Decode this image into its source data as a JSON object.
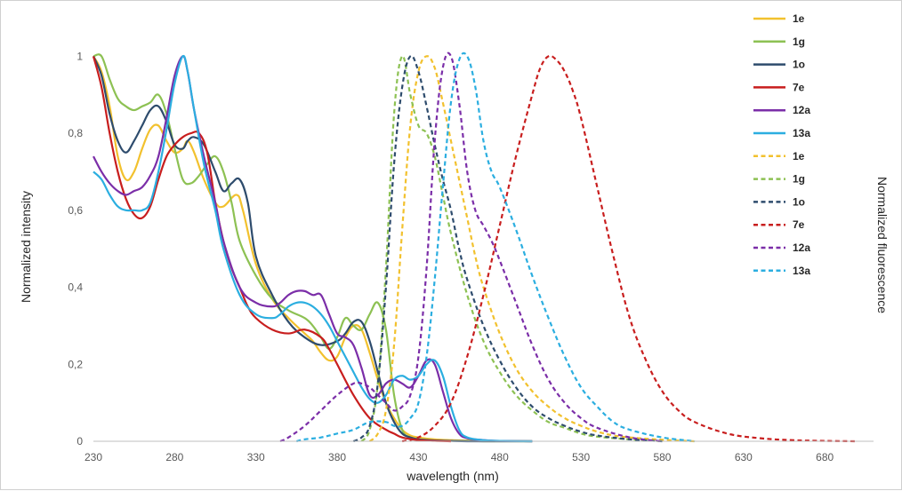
{
  "chart_data": {
    "type": "line",
    "xlabel": "wavelength (nm)",
    "ylabel": "Normalized intensity",
    "y2label": "Normalized fluorescence",
    "xlim": [
      230,
      710
    ],
    "ylim": [
      0,
      1.1
    ],
    "x_ticks": [
      230,
      280,
      330,
      380,
      430,
      480,
      530,
      580,
      630,
      680
    ],
    "y_ticks": [
      0,
      0.2,
      0.4,
      0.6,
      0.8,
      1
    ],
    "y_tick_labels": [
      "0",
      "0,2",
      "0,4",
      "0,6",
      "0,8",
      "1"
    ],
    "grid": false,
    "legend_position": "right",
    "series": [
      {
        "name": "1e",
        "style": "solid",
        "color": "#F2C12E",
        "x": [
          230,
          235,
          240,
          245,
          250,
          255,
          260,
          265,
          270,
          275,
          280,
          285,
          288,
          292,
          298,
          305,
          310,
          318,
          322,
          330,
          340,
          350,
          360,
          365,
          370,
          375,
          380,
          385,
          390,
          395,
          400,
          405,
          410,
          415,
          420,
          425,
          430,
          440,
          450,
          460,
          470,
          480,
          500
        ],
        "y": [
          1.0,
          0.96,
          0.87,
          0.74,
          0.68,
          0.7,
          0.76,
          0.81,
          0.82,
          0.78,
          0.75,
          0.76,
          0.78,
          0.75,
          0.68,
          0.62,
          0.61,
          0.64,
          0.6,
          0.46,
          0.37,
          0.32,
          0.28,
          0.26,
          0.23,
          0.21,
          0.22,
          0.27,
          0.3,
          0.29,
          0.23,
          0.16,
          0.1,
          0.06,
          0.03,
          0.015,
          0.01,
          0.005,
          0.003,
          0.002,
          0.001,
          0.001,
          0.0
        ]
      },
      {
        "name": "1g",
        "style": "solid",
        "color": "#8DC153",
        "x": [
          230,
          235,
          240,
          245,
          250,
          255,
          260,
          265,
          270,
          275,
          280,
          285,
          290,
          295,
          300,
          305,
          310,
          315,
          320,
          330,
          340,
          350,
          360,
          365,
          370,
          375,
          380,
          385,
          390,
          395,
          400,
          405,
          410,
          415,
          420,
          425,
          430,
          440,
          450,
          460,
          470,
          480,
          500
        ],
        "y": [
          1.0,
          1.0,
          0.94,
          0.89,
          0.87,
          0.86,
          0.87,
          0.88,
          0.9,
          0.85,
          0.76,
          0.68,
          0.67,
          0.69,
          0.72,
          0.74,
          0.7,
          0.62,
          0.52,
          0.43,
          0.37,
          0.34,
          0.32,
          0.3,
          0.27,
          0.24,
          0.27,
          0.32,
          0.3,
          0.29,
          0.33,
          0.36,
          0.29,
          0.12,
          0.03,
          0.01,
          0.005,
          0.002,
          0.001,
          0.001,
          0.0,
          0.0,
          0.0
        ]
      },
      {
        "name": "1o",
        "style": "solid",
        "color": "#2E4C6D",
        "x": [
          230,
          235,
          240,
          245,
          250,
          255,
          260,
          265,
          270,
          275,
          280,
          285,
          288,
          292,
          298,
          305,
          310,
          315,
          320,
          325,
          330,
          340,
          350,
          360,
          370,
          380,
          385,
          390,
          395,
          400,
          405,
          410,
          415,
          420,
          425,
          430,
          440,
          450,
          460,
          480,
          500
        ],
        "y": [
          1.0,
          0.95,
          0.85,
          0.78,
          0.75,
          0.78,
          0.82,
          0.86,
          0.87,
          0.83,
          0.77,
          0.76,
          0.78,
          0.79,
          0.77,
          0.7,
          0.65,
          0.67,
          0.68,
          0.62,
          0.48,
          0.38,
          0.31,
          0.27,
          0.25,
          0.26,
          0.28,
          0.31,
          0.31,
          0.26,
          0.18,
          0.1,
          0.05,
          0.02,
          0.01,
          0.005,
          0.002,
          0.001,
          0.0,
          0.0,
          0.0
        ]
      },
      {
        "name": "7e",
        "style": "solid",
        "color": "#C81E1E",
        "x": [
          230,
          235,
          240,
          245,
          250,
          255,
          260,
          265,
          270,
          275,
          280,
          285,
          290,
          295,
          300,
          305,
          310,
          315,
          320,
          325,
          330,
          340,
          350,
          360,
          370,
          375,
          380,
          390,
          400,
          410,
          415,
          420,
          430,
          440,
          450
        ],
        "y": [
          1.0,
          0.92,
          0.8,
          0.7,
          0.63,
          0.59,
          0.58,
          0.61,
          0.68,
          0.74,
          0.77,
          0.79,
          0.8,
          0.8,
          0.75,
          0.62,
          0.52,
          0.45,
          0.4,
          0.35,
          0.32,
          0.29,
          0.28,
          0.29,
          0.27,
          0.24,
          0.2,
          0.12,
          0.06,
          0.03,
          0.02,
          0.01,
          0.003,
          0.001,
          0.0
        ]
      },
      {
        "name": "12a",
        "style": "solid",
        "color": "#7B2EA8",
        "x": [
          230,
          235,
          240,
          245,
          250,
          255,
          260,
          265,
          270,
          275,
          280,
          285,
          288,
          292,
          298,
          305,
          310,
          320,
          330,
          340,
          345,
          350,
          355,
          360,
          365,
          370,
          375,
          380,
          385,
          390,
          395,
          400,
          405,
          410,
          415,
          420,
          425,
          430,
          435,
          440,
          445,
          450,
          455,
          460,
          470,
          480,
          500
        ],
        "y": [
          0.74,
          0.7,
          0.67,
          0.65,
          0.64,
          0.65,
          0.66,
          0.69,
          0.74,
          0.84,
          0.95,
          1.0,
          0.96,
          0.86,
          0.74,
          0.62,
          0.52,
          0.4,
          0.36,
          0.35,
          0.36,
          0.38,
          0.39,
          0.39,
          0.38,
          0.38,
          0.33,
          0.28,
          0.27,
          0.25,
          0.19,
          0.12,
          0.12,
          0.15,
          0.16,
          0.15,
          0.14,
          0.17,
          0.21,
          0.2,
          0.13,
          0.06,
          0.02,
          0.008,
          0.003,
          0.001,
          0.0
        ]
      },
      {
        "name": "13a",
        "style": "solid",
        "color": "#2BAEE0",
        "x": [
          230,
          235,
          240,
          245,
          250,
          255,
          260,
          265,
          270,
          275,
          280,
          285,
          288,
          292,
          298,
          305,
          310,
          320,
          330,
          340,
          345,
          350,
          355,
          360,
          365,
          370,
          375,
          380,
          385,
          390,
          395,
          400,
          405,
          410,
          415,
          420,
          425,
          430,
          435,
          440,
          445,
          450,
          455,
          460,
          470,
          480,
          500
        ],
        "y": [
          0.7,
          0.68,
          0.64,
          0.61,
          0.6,
          0.6,
          0.6,
          0.62,
          0.7,
          0.81,
          0.93,
          1.0,
          0.96,
          0.86,
          0.72,
          0.6,
          0.5,
          0.38,
          0.33,
          0.32,
          0.33,
          0.35,
          0.36,
          0.36,
          0.35,
          0.33,
          0.3,
          0.26,
          0.22,
          0.18,
          0.14,
          0.11,
          0.1,
          0.12,
          0.16,
          0.17,
          0.16,
          0.17,
          0.2,
          0.21,
          0.17,
          0.09,
          0.03,
          0.01,
          0.003,
          0.001,
          0.0
        ]
      },
      {
        "name": "1e",
        "style": "dashed",
        "color": "#F2C12E",
        "x": [
          400,
          405,
          410,
          415,
          420,
          425,
          430,
          435,
          440,
          445,
          450,
          455,
          460,
          465,
          470,
          480,
          490,
          500,
          510,
          520,
          530,
          540,
          550,
          560,
          580,
          600
        ],
        "y": [
          0.0,
          0.02,
          0.08,
          0.25,
          0.55,
          0.82,
          0.96,
          1.0,
          0.97,
          0.88,
          0.78,
          0.68,
          0.58,
          0.48,
          0.4,
          0.28,
          0.19,
          0.13,
          0.09,
          0.06,
          0.04,
          0.025,
          0.015,
          0.01,
          0.004,
          0.0
        ]
      },
      {
        "name": "1g",
        "style": "dashed",
        "color": "#8DC153",
        "x": [
          395,
          400,
          405,
          410,
          415,
          420,
          425,
          430,
          435,
          440,
          445,
          450,
          460,
          470,
          480,
          490,
          500,
          510,
          520,
          530,
          540,
          560,
          580
        ],
        "y": [
          0.0,
          0.03,
          0.15,
          0.45,
          0.85,
          1.0,
          0.9,
          0.82,
          0.8,
          0.74,
          0.64,
          0.54,
          0.38,
          0.26,
          0.18,
          0.12,
          0.08,
          0.05,
          0.035,
          0.02,
          0.012,
          0.005,
          0.0
        ]
      },
      {
        "name": "1o",
        "style": "dashed",
        "color": "#2E4C6D",
        "x": [
          390,
          395,
          400,
          405,
          410,
          415,
          420,
          425,
          430,
          435,
          440,
          445,
          450,
          455,
          460,
          470,
          480,
          490,
          500,
          510,
          520,
          530,
          540,
          560,
          580
        ],
        "y": [
          0.0,
          0.01,
          0.04,
          0.15,
          0.4,
          0.72,
          0.92,
          1.0,
          0.96,
          0.87,
          0.77,
          0.68,
          0.6,
          0.5,
          0.42,
          0.3,
          0.21,
          0.14,
          0.09,
          0.06,
          0.04,
          0.025,
          0.015,
          0.005,
          0.0
        ]
      },
      {
        "name": "7e",
        "style": "dashed",
        "color": "#C81E1E",
        "x": [
          420,
          430,
          440,
          450,
          460,
          470,
          480,
          490,
          500,
          505,
          510,
          515,
          520,
          525,
          530,
          540,
          550,
          560,
          570,
          580,
          590,
          600,
          620,
          640,
          660,
          680,
          700
        ],
        "y": [
          0.0,
          0.01,
          0.04,
          0.1,
          0.22,
          0.38,
          0.56,
          0.74,
          0.9,
          0.97,
          1.0,
          0.99,
          0.96,
          0.91,
          0.84,
          0.66,
          0.48,
          0.32,
          0.21,
          0.13,
          0.08,
          0.05,
          0.02,
          0.008,
          0.003,
          0.001,
          0.0
        ]
      },
      {
        "name": "12a",
        "style": "dashed",
        "color": "#7B2EA8",
        "x": [
          345,
          350,
          360,
          370,
          380,
          390,
          395,
          400,
          405,
          410,
          415,
          420,
          425,
          430,
          435,
          440,
          445,
          450,
          455,
          460,
          465,
          470,
          475,
          480,
          490,
          500,
          510,
          520,
          530,
          540,
          560,
          580
        ],
        "y": [
          0.0,
          0.01,
          0.04,
          0.08,
          0.12,
          0.15,
          0.15,
          0.14,
          0.12,
          0.1,
          0.08,
          0.09,
          0.12,
          0.22,
          0.45,
          0.78,
          0.97,
          1.0,
          0.88,
          0.7,
          0.6,
          0.56,
          0.52,
          0.47,
          0.36,
          0.25,
          0.16,
          0.1,
          0.06,
          0.035,
          0.01,
          0.0
        ]
      },
      {
        "name": "13a",
        "style": "dashed",
        "color": "#2BAEE0",
        "x": [
          355,
          360,
          370,
          380,
          390,
          400,
          410,
          415,
          420,
          425,
          430,
          435,
          440,
          445,
          450,
          455,
          460,
          465,
          470,
          475,
          480,
          490,
          500,
          510,
          520,
          530,
          540,
          550,
          560,
          580,
          600
        ],
        "y": [
          0.0,
          0.005,
          0.01,
          0.02,
          0.03,
          0.05,
          0.05,
          0.04,
          0.04,
          0.06,
          0.1,
          0.22,
          0.42,
          0.66,
          0.88,
          0.99,
          1.0,
          0.92,
          0.78,
          0.7,
          0.66,
          0.55,
          0.43,
          0.32,
          0.22,
          0.14,
          0.09,
          0.05,
          0.03,
          0.01,
          0.0
        ]
      }
    ]
  }
}
